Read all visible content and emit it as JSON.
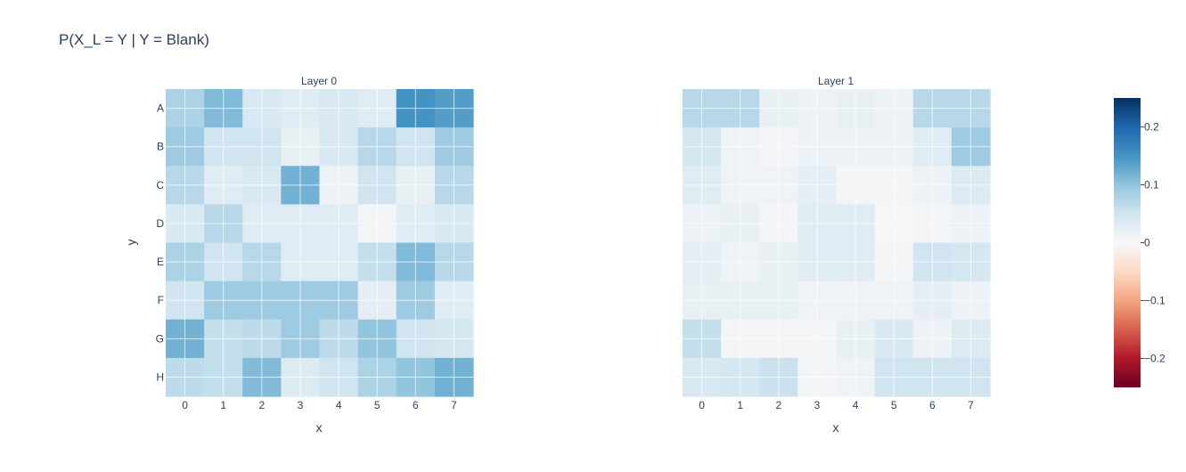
{
  "chart_data": {
    "type": "heatmap",
    "title": "P(X_L = Y | Y = Blank)",
    "xlabel": "x",
    "ylabel": "y",
    "x_ticks": [
      "0",
      "1",
      "2",
      "3",
      "4",
      "5",
      "6",
      "7"
    ],
    "y_ticks": [
      "A",
      "B",
      "C",
      "D",
      "E",
      "F",
      "G",
      "H"
    ],
    "colorscale": "RdBu",
    "zlim": [
      -0.25,
      0.25
    ],
    "colorbar_ticks": [
      "0.2",
      "0.1",
      "0",
      "−0.1",
      "−0.2"
    ],
    "colorbar_tick_values": [
      0.2,
      0.1,
      0,
      -0.1,
      -0.2
    ],
    "grid": true,
    "panels": [
      {
        "title": "Layer 0",
        "z": [
          [
            0.08,
            0.11,
            0.04,
            0.03,
            0.04,
            0.03,
            0.15,
            0.14
          ],
          [
            0.09,
            0.05,
            0.05,
            0.02,
            0.04,
            0.07,
            0.05,
            0.09
          ],
          [
            0.07,
            0.03,
            0.04,
            0.12,
            0.015,
            0.05,
            0.02,
            0.07
          ],
          [
            0.04,
            0.07,
            0.03,
            0.03,
            0.03,
            0.005,
            0.03,
            0.04
          ],
          [
            0.08,
            0.05,
            0.07,
            0.03,
            0.03,
            0.06,
            0.11,
            0.07
          ],
          [
            0.05,
            0.09,
            0.09,
            0.09,
            0.09,
            0.025,
            0.09,
            0.03
          ],
          [
            0.12,
            0.06,
            0.065,
            0.09,
            0.065,
            0.1,
            0.05,
            0.045
          ],
          [
            0.065,
            0.06,
            0.11,
            0.035,
            0.05,
            0.08,
            0.1,
            0.12
          ]
        ]
      },
      {
        "title": "Layer 1",
        "z": [
          [
            0.07,
            0.07,
            0.02,
            0.015,
            0.02,
            0.015,
            0.07,
            0.07
          ],
          [
            0.045,
            0.01,
            0.005,
            0.015,
            0.015,
            0.015,
            0.03,
            0.09
          ],
          [
            0.03,
            0.01,
            0.01,
            0.025,
            0.005,
            0.005,
            0.015,
            0.035
          ],
          [
            0.015,
            0.02,
            0.005,
            0.03,
            0.03,
            0.003,
            0.005,
            0.015
          ],
          [
            0.025,
            0.01,
            0.02,
            0.03,
            0.03,
            0.005,
            0.05,
            0.045
          ],
          [
            0.02,
            0.02,
            0.02,
            0.01,
            0.01,
            0.01,
            0.025,
            0.015
          ],
          [
            0.06,
            0.005,
            0.005,
            0.005,
            0.02,
            0.04,
            0.015,
            0.035
          ],
          [
            0.04,
            0.045,
            0.055,
            0.005,
            0.01,
            0.05,
            0.05,
            0.05
          ]
        ]
      }
    ]
  }
}
